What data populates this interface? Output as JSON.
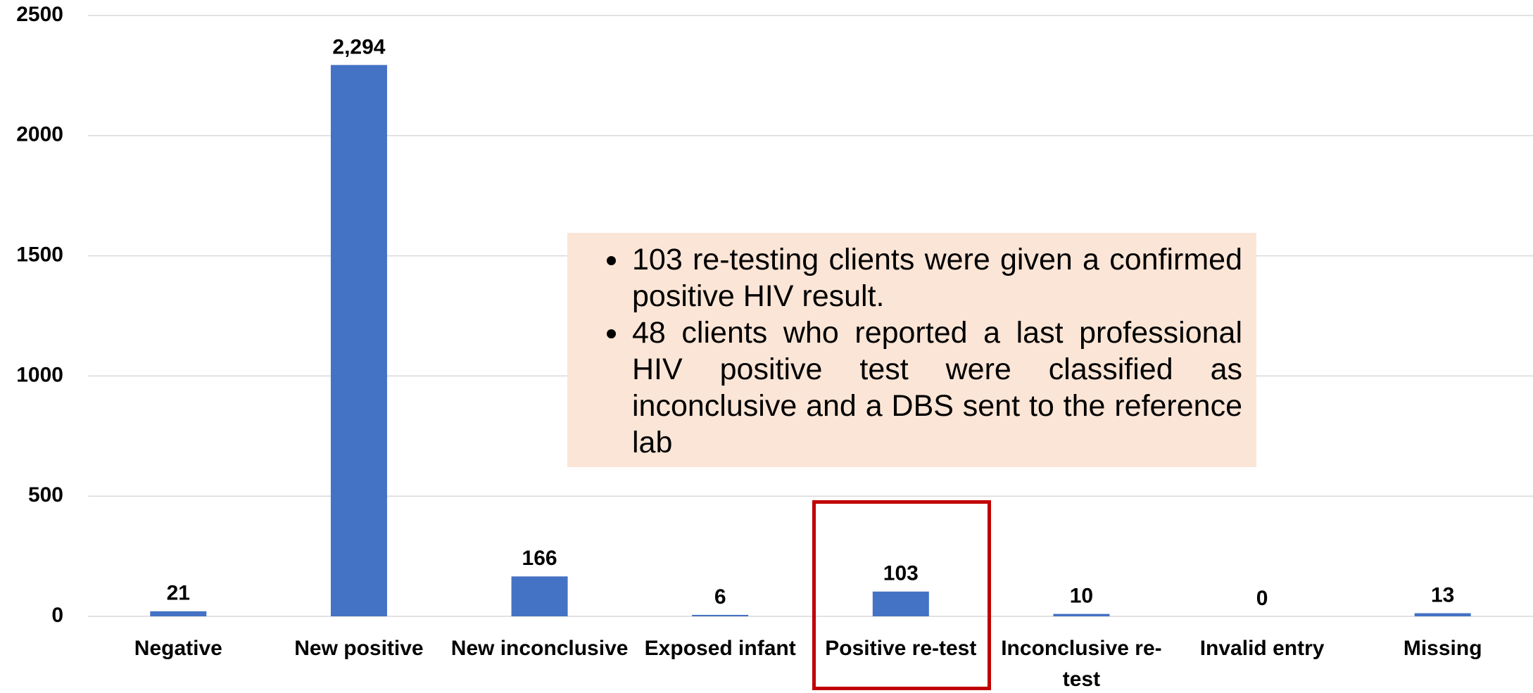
{
  "chart_data": {
    "type": "bar",
    "categories": [
      "Negative",
      "New positive",
      "New inconclusive",
      "Exposed infant",
      "Positive re-test",
      "Inconclusive re-test",
      "Invalid entry",
      "Missing"
    ],
    "values": [
      21,
      2294,
      166,
      6,
      103,
      10,
      0,
      13
    ],
    "value_labels": [
      "21",
      "2,294",
      "166",
      "6",
      "103",
      "10",
      "0",
      "13"
    ],
    "color": "#4472c4",
    "ylim": [
      0,
      2500
    ],
    "yticks": [
      0,
      500,
      1000,
      1500,
      2000,
      2500
    ],
    "grid": true,
    "annotations": [
      "103 re-testing clients were given a confirmed positive HIV result.",
      "48 clients who reported a last professional HIV positive test were classified as inconclusive and a DBS sent to the reference lab"
    ]
  }
}
